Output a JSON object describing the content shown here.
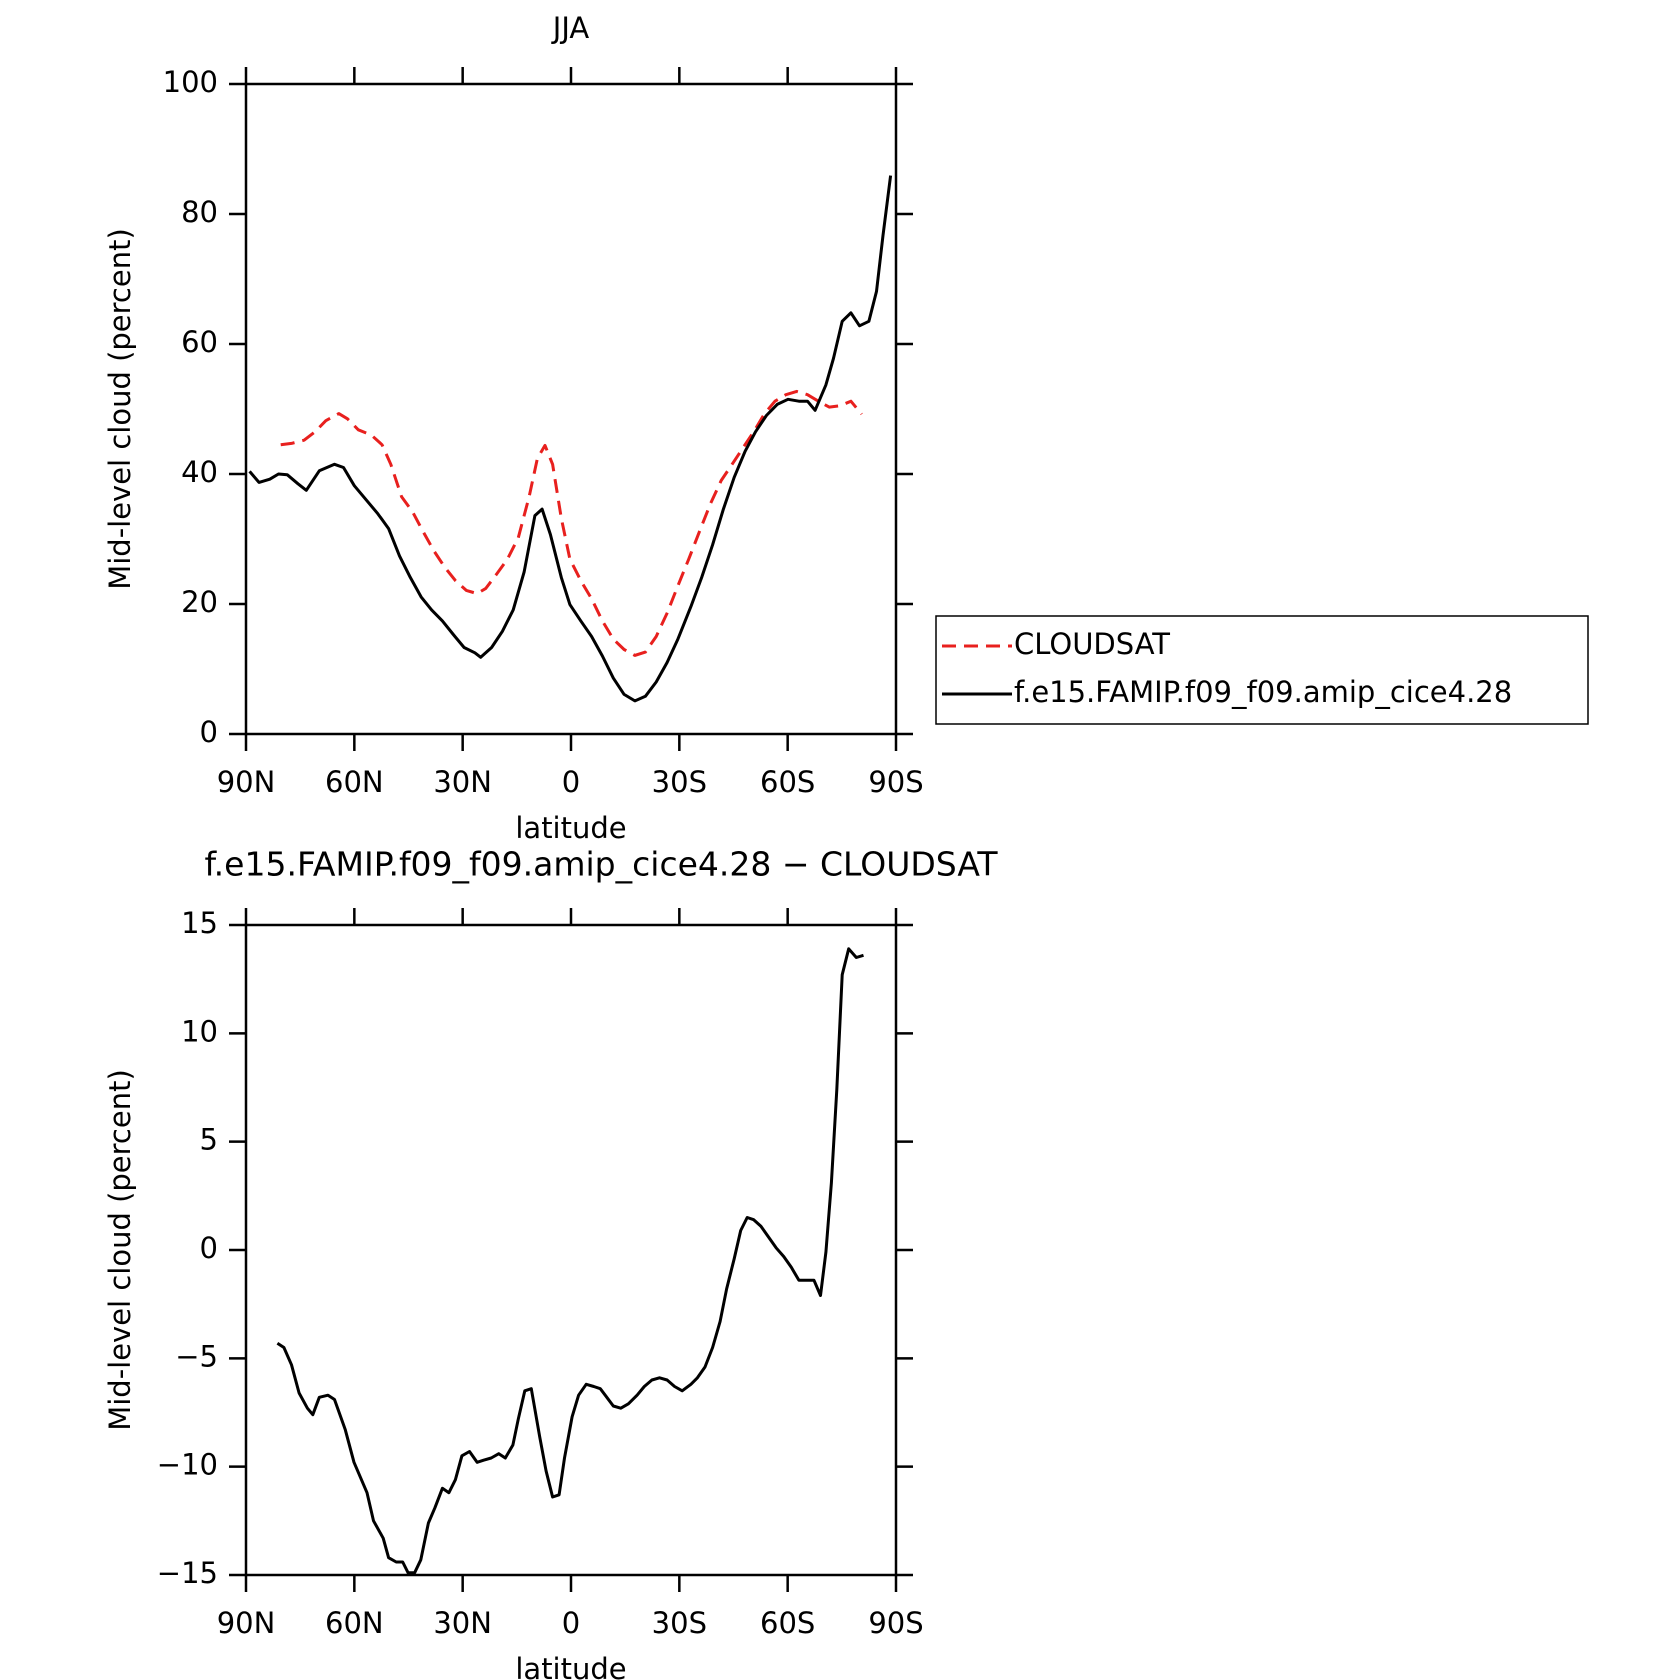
{
  "chart_data": [
    {
      "type": "line",
      "title": "JJA",
      "xlabel": "latitude",
      "ylabel": "Mid-level cloud (percent)",
      "xlim": [
        90,
        -90
      ],
      "xticks": [
        {
          "value": 90,
          "label": "90N"
        },
        {
          "value": 60,
          "label": "60N"
        },
        {
          "value": 30,
          "label": "30N"
        },
        0,
        {
          "value": -30,
          "label": "30S"
        },
        {
          "value": -60,
          "label": "60S"
        },
        {
          "value": -90,
          "label": "90S"
        }
      ],
      "ylim": [
        0,
        100
      ],
      "yticks": [
        0,
        20,
        40,
        60,
        80,
        100
      ],
      "legend": "right",
      "series": [
        {
          "name": "CLOUDSAT",
          "color": "#e8201e",
          "dashed": true,
          "x": [
            80.4,
            77.4,
            73.9,
            70.9,
            67.9,
            64.3,
            61.9,
            58.9,
            55.3,
            52.3,
            49.9,
            46.9,
            43.9,
            41,
            38,
            35,
            32,
            29,
            26,
            23.6,
            20.6,
            17.6,
            14.6,
            11.6,
            9.3,
            7.2,
            5.1,
            2.7,
            0.3,
            -2.7,
            -5.7,
            -8.7,
            -11.7,
            -14.7,
            -17.7,
            -20.6,
            -23.6,
            -26.6,
            -29.6,
            -32.6,
            -35.6,
            -38.6,
            -41.6,
            -44.6,
            -47.6,
            -50.6,
            -53.6,
            -56.5,
            -59.5,
            -62.5,
            -65.5,
            -68.5,
            -71.5,
            -74.5,
            -77.5,
            -80.5
          ],
          "values": [
            44.5,
            44.7,
            45.2,
            46.5,
            48.2,
            49.3,
            48.5,
            46.8,
            46.0,
            44.5,
            41.5,
            36.5,
            34.2,
            31.2,
            28.2,
            25.7,
            23.6,
            22.1,
            21.6,
            22.4,
            24.6,
            26.9,
            30.2,
            36.5,
            42.4,
            44.4,
            41.5,
            33.2,
            26.9,
            23.6,
            20.8,
            17.4,
            14.6,
            13.0,
            12.1,
            12.6,
            15.0,
            18.6,
            22.8,
            26.9,
            31.2,
            35.4,
            39.0,
            41.5,
            44.0,
            46.5,
            49.3,
            51.2,
            52.2,
            52.7,
            52.2,
            51.2,
            50.3,
            50.5,
            51.2,
            49.2
          ]
        },
        {
          "name": "f.e15.FAMIP.f09_f09.amip_cice4.28",
          "color": "#000000",
          "dashed": false,
          "x": [
            89,
            86.4,
            83.4,
            81,
            78.6,
            75.6,
            73.3,
            69.7,
            65.5,
            63,
            60,
            57,
            53.5,
            50.5,
            47.5,
            44.5,
            41.5,
            38.6,
            35.6,
            32.6,
            29.6,
            26.6,
            25,
            22,
            19,
            16,
            13,
            10,
            8,
            5.7,
            2.7,
            0.3,
            -2.7,
            -5.7,
            -8.7,
            -11.7,
            -14.7,
            -17.7,
            -20.6,
            -23.6,
            -26.6,
            -29.6,
            -33.2,
            -36.2,
            -39.2,
            -42.2,
            -45.2,
            -48.2,
            -51.1,
            -54.1,
            -57.1,
            -60.1,
            -63.1,
            -65.5,
            -67.6,
            -70.6,
            -72.7,
            -75.1,
            -77.5,
            -79.9,
            -82.5,
            -84.6,
            -86.4,
            -88.5
          ],
          "values": [
            40.4,
            38.7,
            39.2,
            40.0,
            39.9,
            38.5,
            37.5,
            40.5,
            41.5,
            41.0,
            38.2,
            36.2,
            33.9,
            31.6,
            27.4,
            24.1,
            21.1,
            19.1,
            17.4,
            15.3,
            13.3,
            12.5,
            11.8,
            13.3,
            15.8,
            19.1,
            24.9,
            33.6,
            34.6,
            30.7,
            24.1,
            19.9,
            17.4,
            15.0,
            12.0,
            8.6,
            6.1,
            5.1,
            5.8,
            8.0,
            11.0,
            14.6,
            19.6,
            24.1,
            29.1,
            34.6,
            39.5,
            43.5,
            46.5,
            49.0,
            50.7,
            51.5,
            51.2,
            51.2,
            49.8,
            53.7,
            57.8,
            63.5,
            64.8,
            62.8,
            63.5,
            68.1,
            76.7,
            85.9
          ]
        }
      ]
    },
    {
      "type": "line",
      "title": "f.e15.FAMIP.f09_f09.amip_cice4.28 − CLOUDSAT",
      "xlabel": "latitude",
      "ylabel": "Mid-level cloud (percent)",
      "xlim": [
        90,
        -90
      ],
      "xticks": [
        {
          "value": 90,
          "label": "90N"
        },
        {
          "value": 60,
          "label": "60N"
        },
        {
          "value": 30,
          "label": "30N"
        },
        0,
        {
          "value": -30,
          "label": "30S"
        },
        {
          "value": -60,
          "label": "60S"
        },
        {
          "value": -90,
          "label": "90S"
        }
      ],
      "ylim": [
        -15,
        15
      ],
      "yticks": [
        {
          "value": -15,
          "label": "−15"
        },
        {
          "value": -10,
          "label": "−10"
        },
        {
          "value": -5,
          "label": "−5"
        },
        0,
        5,
        10,
        15
      ],
      "series": [
        {
          "color": "#000000",
          "dashed": false,
          "x": [
            81.3,
            79.5,
            77.4,
            75.3,
            73,
            71.5,
            69.7,
            67.3,
            65.5,
            62.5,
            60.1,
            56.5,
            54.7,
            52,
            50.5,
            48.4,
            46.6,
            45.1,
            43.3,
            41.6,
            39.5,
            37.7,
            35.6,
            33.8,
            32,
            30.2,
            28.1,
            26,
            24.2,
            22.1,
            20,
            18.2,
            16.1,
            14.6,
            12.8,
            11,
            8.7,
            6.9,
            5.1,
            3.3,
            1.8,
            -0.3,
            -2.1,
            -4.2,
            -6.3,
            -8.1,
            -9.9,
            -11.7,
            -13.8,
            -15.9,
            -18.3,
            -20.3,
            -22.4,
            -24.5,
            -26.6,
            -28.7,
            -30.8,
            -33.2,
            -35,
            -37.1,
            -39.2,
            -41.3,
            -43.1,
            -45.2,
            -47,
            -48.8,
            -50.6,
            -52.6,
            -54.7,
            -56.8,
            -58.9,
            -61,
            -63.1,
            -65.2,
            -67.3,
            -69.1,
            -70.6,
            -72.1,
            -73.6,
            -75.1,
            -76.9,
            -79,
            -81
          ],
          "values": [
            -4.3,
            -4.5,
            -5.3,
            -6.6,
            -7.3,
            -7.6,
            -6.8,
            -6.7,
            -6.9,
            -8.3,
            -9.8,
            -11.2,
            -12.5,
            -13.3,
            -14.2,
            -14.4,
            -14.4,
            -14.9,
            -14.9,
            -14.3,
            -12.6,
            -11.9,
            -11.0,
            -11.2,
            -10.6,
            -9.5,
            -9.3,
            -9.8,
            -9.7,
            -9.6,
            -9.4,
            -9.6,
            -9.0,
            -7.8,
            -6.5,
            -6.4,
            -8.6,
            -10.2,
            -11.4,
            -11.3,
            -9.6,
            -7.7,
            -6.7,
            -6.2,
            -6.3,
            -6.4,
            -6.8,
            -7.2,
            -7.3,
            -7.1,
            -6.7,
            -6.3,
            -6.0,
            -5.9,
            -6.0,
            -6.3,
            -6.5,
            -6.2,
            -5.9,
            -5.4,
            -4.5,
            -3.3,
            -1.8,
            -0.4,
            0.9,
            1.5,
            1.4,
            1.1,
            0.6,
            0.1,
            -0.3,
            -0.8,
            -1.4,
            -1.4,
            -1.4,
            -2.1,
            -0.1,
            3.1,
            7.4,
            12.7,
            13.9,
            13.5,
            13.6
          ]
        }
      ]
    }
  ]
}
